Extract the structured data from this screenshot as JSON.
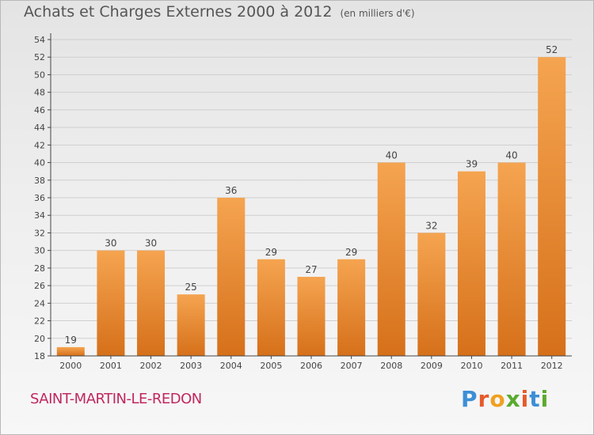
{
  "title": "Achats et Charges Externes 2000 à 2012",
  "unit": "(en milliers d'€)",
  "town": "SAINT-MARTIN-LE-REDON",
  "logo": {
    "text": "Proxiti",
    "colors": [
      "#3d8fd6",
      "#e65b2a",
      "#f0a020",
      "#5aab2e",
      "#e65b2a",
      "#3d8fd6",
      "#5aab2e"
    ]
  },
  "colors": {
    "bar_light": "#f5a450",
    "bar_dark": "#d6701a",
    "axis": "#444444",
    "grid": "#cfcfcf",
    "title": "#555555",
    "town": "#c0285e"
  },
  "chart_data": {
    "type": "bar",
    "categories": [
      "2000",
      "2001",
      "2002",
      "2003",
      "2004",
      "2005",
      "2006",
      "2007",
      "2008",
      "2009",
      "2010",
      "2011",
      "2012"
    ],
    "values": [
      19,
      30,
      30,
      25,
      36,
      29,
      27,
      29,
      40,
      32,
      39,
      40,
      52
    ],
    "ylim": [
      18,
      54
    ],
    "yticks": [
      18,
      20,
      22,
      24,
      26,
      28,
      30,
      32,
      34,
      36,
      38,
      40,
      42,
      44,
      46,
      48,
      50,
      52,
      54
    ],
    "grid": true,
    "xlabel": "",
    "ylabel": ""
  }
}
